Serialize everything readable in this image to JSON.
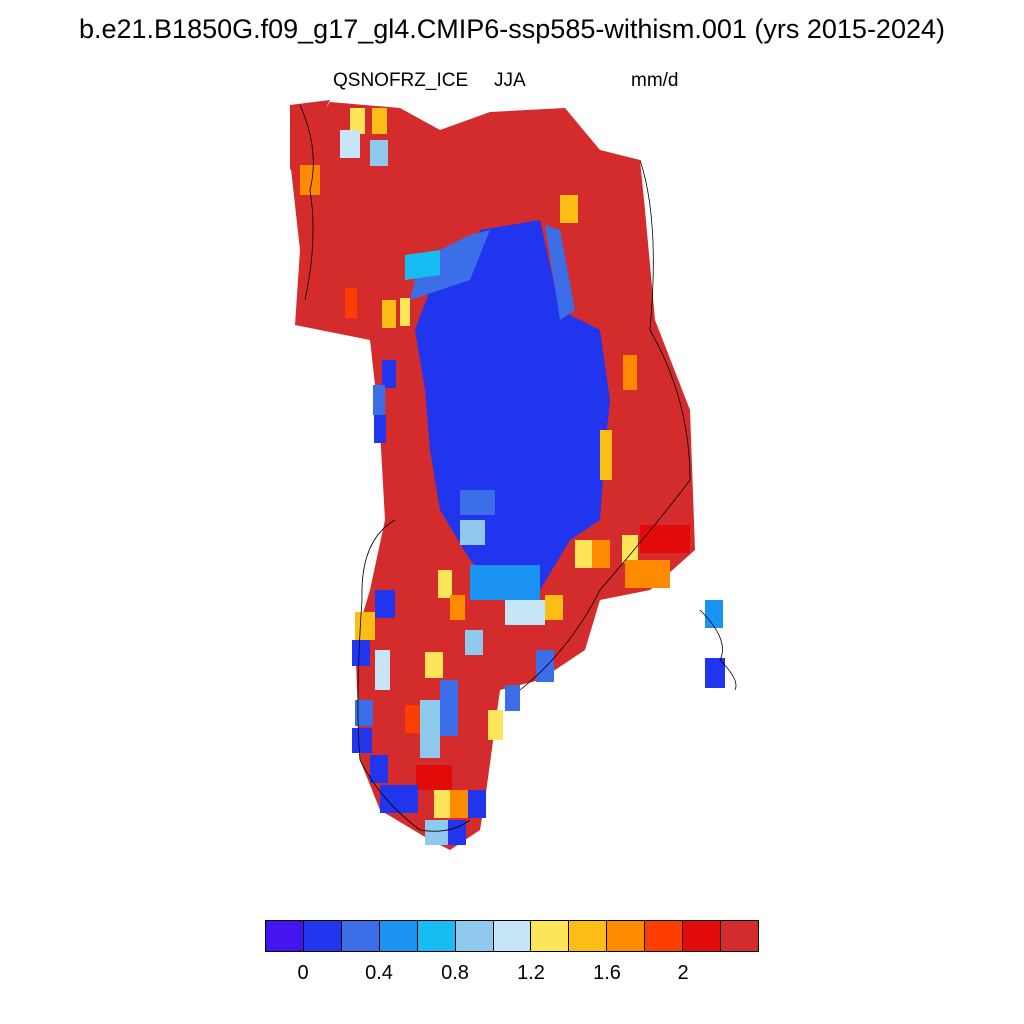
{
  "title": "b.e21.B1850G.f09_g17_gl4.CMIP6-ssp585-withism.001 (yrs 2015-2024)",
  "variable": "QSNOFRZ_ICE",
  "season": "JJA",
  "units": "mm/d",
  "colorbar": {
    "colors": [
      "#4414ee",
      "#2135ee",
      "#3c6ee8",
      "#1b93f2",
      "#17bdf2",
      "#90c9ee",
      "#c6e5f6",
      "#fde55a",
      "#fcbd14",
      "#fe8a00",
      "#fe3e00",
      "#e30a0a",
      "#d42c2c"
    ],
    "tick_labels": [
      "0",
      "0.4",
      "0.8",
      "1.2",
      "1.6",
      "2"
    ]
  }
}
